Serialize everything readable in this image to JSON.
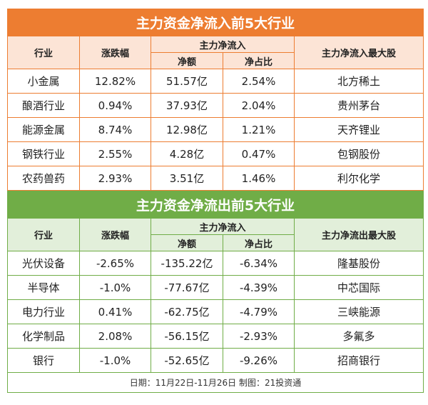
{
  "inflow": {
    "title": "主力资金净流入前5大行业",
    "headers": {
      "industry": "行业",
      "change": "涨跌幅",
      "net_group": "主力净流入",
      "net_amount": "净额",
      "net_ratio": "净占比",
      "top_stock": "主力净流入最大股"
    },
    "rows": [
      {
        "industry": "小金属",
        "change": "12.82%",
        "amount": "51.57亿",
        "ratio": "2.54%",
        "stock": "北方稀土"
      },
      {
        "industry": "酿酒行业",
        "change": "0.94%",
        "amount": "37.93亿",
        "ratio": "2.04%",
        "stock": "贵州茅台"
      },
      {
        "industry": "能源金属",
        "change": "8.74%",
        "amount": "12.98亿",
        "ratio": "1.21%",
        "stock": "天齐锂业"
      },
      {
        "industry": "钢铁行业",
        "change": "2.55%",
        "amount": "4.28亿",
        "ratio": "0.47%",
        "stock": "包钢股份"
      },
      {
        "industry": "农药兽药",
        "change": "2.93%",
        "amount": "3.51亿",
        "ratio": "1.46%",
        "stock": "利尔化学"
      }
    ]
  },
  "outflow": {
    "title": "主力资金净流出前5大行业",
    "headers": {
      "industry": "行业",
      "change": "涨跌幅",
      "net_group": "主力净流入",
      "net_amount": "净额",
      "net_ratio": "净占比",
      "top_stock": "主力净流出最大股"
    },
    "rows": [
      {
        "industry": "光伏设备",
        "change": "-2.65%",
        "amount": "-135.22亿",
        "ratio": "-6.34%",
        "stock": "隆基股份"
      },
      {
        "industry": "半导体",
        "change": "-1.0%",
        "amount": "-77.67亿",
        "ratio": "-4.39%",
        "stock": "中芯国际"
      },
      {
        "industry": "电力行业",
        "change": "0.41%",
        "amount": "-62.75亿",
        "ratio": "-4.79%",
        "stock": "三峡能源"
      },
      {
        "industry": "化学制品",
        "change": "2.08%",
        "amount": "-56.15亿",
        "ratio": "-2.93%",
        "stock": "多氟多"
      },
      {
        "industry": "银行",
        "change": "-1.0%",
        "amount": "-52.65亿",
        "ratio": "-9.26%",
        "stock": "招商银行"
      }
    ]
  },
  "footer": "日期：11月22日-11月26日  制图：21投资通"
}
